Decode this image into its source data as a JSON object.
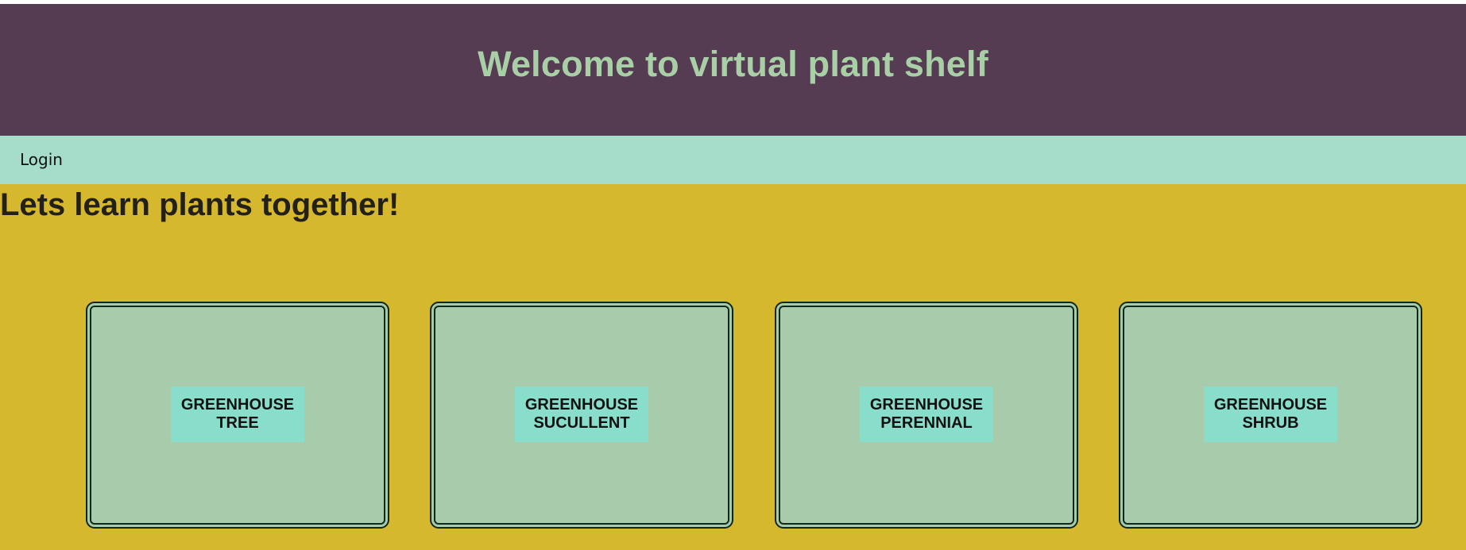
{
  "header": {
    "title": "Welcome to virtual plant shelf"
  },
  "nav": {
    "login_label": "Login"
  },
  "main": {
    "heading": "Lets learn plants together!",
    "cards": [
      {
        "label": "GREENHOUSE\nTREE"
      },
      {
        "label": "GREENHOUSE\nSUCULLENT"
      },
      {
        "label": "GREENHOUSE\nPERENNIAL"
      },
      {
        "label": "GREENHOUSE\nSHRUB"
      }
    ]
  },
  "colors": {
    "header_bg": "#553c52",
    "header_text": "#a9cfa7",
    "nav_bg": "#a6ddca",
    "main_bg": "#d6b82e",
    "card_bg": "#a8ccab",
    "card_label_bg": "#89ddcb",
    "card_border": "#0f2a1c"
  }
}
